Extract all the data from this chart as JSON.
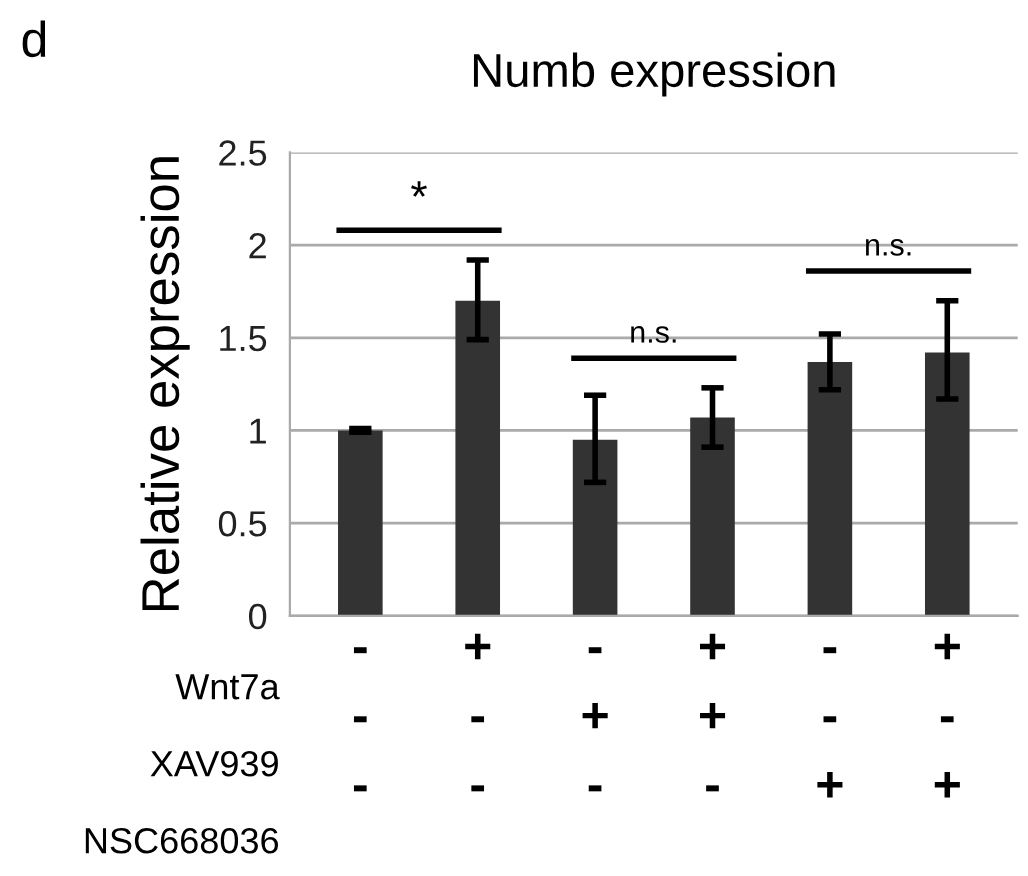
{
  "chart_data": {
    "type": "bar",
    "title": "Numb expression",
    "ylabel": "Relative expression",
    "categories": [
      "-\n-\n-",
      "+\n-\n-",
      "-\n+\n-",
      "+\n+\n-",
      "-\n-\n+",
      "+\n-\n+"
    ],
    "values": [
      1.0,
      1.7,
      0.95,
      1.07,
      1.37,
      1.42
    ],
    "errors": [
      0.01,
      [
        1.49,
        1.92
      ],
      [
        0.72,
        1.19
      ],
      [
        0.91,
        1.23
      ],
      [
        1.22,
        1.52
      ],
      [
        1.17,
        1.7
      ]
    ],
    "color": "#333333",
    "ylim": [
      0,
      2.5
    ],
    "yticks": [
      0,
      0.5,
      1,
      1.5,
      2,
      2.5
    ],
    "grid": "y",
    "annotations": [
      "d",
      "Wnt7a",
      "XAV939",
      "NSC668036",
      "*",
      "n.s.",
      "n.s."
    ]
  }
}
